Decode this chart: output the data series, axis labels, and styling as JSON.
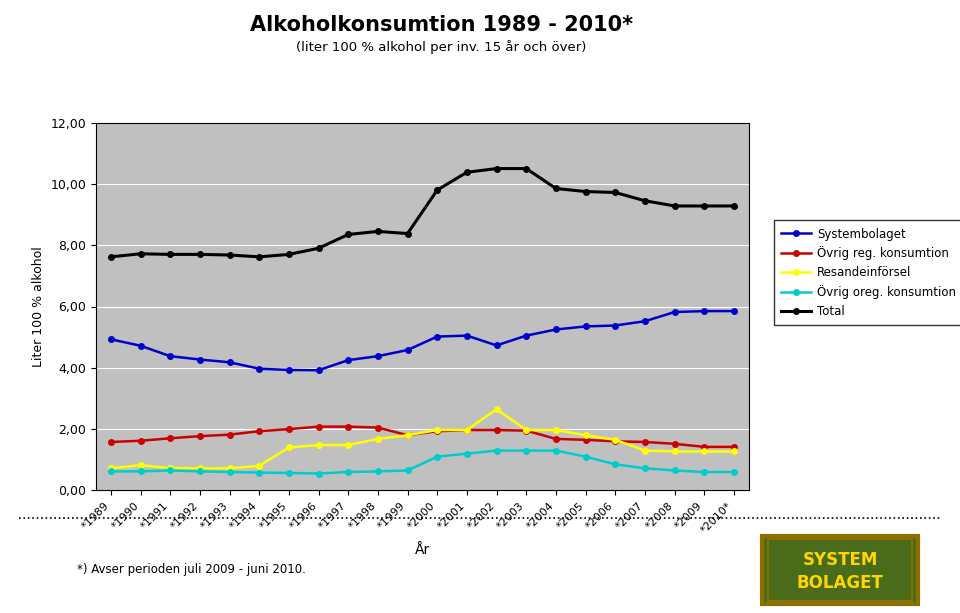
{
  "title": "Alkoholkonsumtion 1989 - 2010*",
  "subtitle": "(liter 100 % alkohol per inv. 15 år och över)",
  "xlabel": "År",
  "ylabel": "Liter 100 % alkohol",
  "footnote": "*) Avser perioden juli 2009 - juni 2010.",
  "years": [
    1989,
    1990,
    1991,
    1992,
    1993,
    1994,
    1995,
    1996,
    1997,
    1998,
    1999,
    2000,
    2001,
    2002,
    2003,
    2004,
    2005,
    2006,
    2007,
    2008,
    2009,
    2010
  ],
  "xtick_labels": [
    "*1989",
    "*1990",
    "*1991",
    "*1992",
    "*1993",
    "*1994",
    "*1995",
    "*1996",
    "*1997",
    "*1998",
    "*1999",
    "*2000",
    "*2001",
    "*2002",
    "*2003",
    "*2004",
    "*2005",
    "*2006",
    "*2007",
    "*2008",
    "*2009",
    "*2010*"
  ],
  "systembolaget": [
    4.93,
    4.72,
    4.38,
    4.27,
    4.18,
    3.97,
    3.93,
    3.92,
    4.25,
    4.38,
    4.58,
    5.02,
    5.05,
    4.73,
    5.05,
    5.25,
    5.35,
    5.38,
    5.52,
    5.82,
    5.85,
    5.85
  ],
  "ovrig_reg": [
    1.58,
    1.62,
    1.7,
    1.77,
    1.82,
    1.93,
    2.0,
    2.08,
    2.08,
    2.05,
    1.8,
    1.93,
    1.97,
    1.97,
    1.95,
    1.68,
    1.65,
    1.6,
    1.58,
    1.52,
    1.42,
    1.42
  ],
  "resandeinforsel": [
    0.72,
    0.82,
    0.73,
    0.72,
    0.72,
    0.8,
    1.4,
    1.48,
    1.48,
    1.68,
    1.8,
    1.97,
    1.97,
    2.65,
    1.97,
    1.97,
    1.8,
    1.65,
    1.3,
    1.27,
    1.27,
    1.27
  ],
  "ovrig_oreg": [
    0.62,
    0.62,
    0.65,
    0.62,
    0.6,
    0.58,
    0.57,
    0.55,
    0.6,
    0.62,
    0.65,
    1.1,
    1.2,
    1.3,
    1.3,
    1.3,
    1.1,
    0.85,
    0.72,
    0.65,
    0.6,
    0.6
  ],
  "total": [
    7.62,
    7.72,
    7.7,
    7.7,
    7.68,
    7.62,
    7.7,
    7.9,
    8.35,
    8.45,
    8.38,
    9.8,
    10.38,
    10.5,
    10.5,
    9.85,
    9.75,
    9.72,
    9.45,
    9.28,
    9.28,
    9.28
  ],
  "ylim": [
    0,
    12
  ],
  "yticks": [
    0.0,
    2.0,
    4.0,
    6.0,
    8.0,
    10.0,
    12.0
  ],
  "ytick_labels": [
    "0,00",
    "2,00",
    "4,00",
    "6,00",
    "8,00",
    "10,00",
    "12,00"
  ],
  "colors": {
    "systembolaget": "#0000CC",
    "ovrig_reg": "#CC0000",
    "resandeinforsel": "#FFFF00",
    "ovrig_oreg": "#00CCCC",
    "total": "#000000"
  },
  "plot_bg": "#C0C0C0",
  "fig_bg": "#FFFFFF",
  "legend_labels": [
    "Systembolaget",
    "Övrig reg. konsumtion",
    "Resandeinförsel",
    "Övrig oreg. konsumtion",
    "Total"
  ],
  "logo_bg": "#4A6B1A",
  "logo_border": "#8B7000",
  "logo_text_color": "#FFD700",
  "logo_text1": "SYSTEM",
  "logo_text2": "BOLAGET"
}
